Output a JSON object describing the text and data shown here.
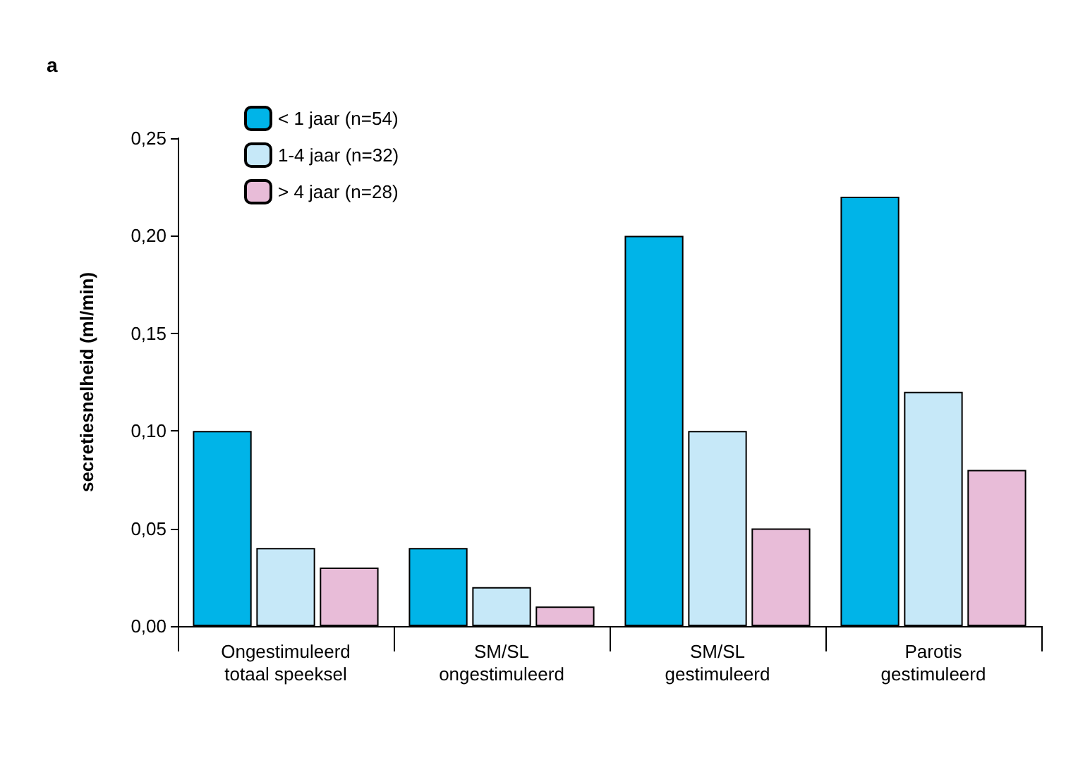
{
  "chart_data": {
    "type": "bar",
    "title": "a",
    "ylabel": "secretiesnelheid (ml/min)",
    "categories": [
      "Ongestimuleerd\ntotaal speeksel",
      "SM/SL\nongestimuleerd",
      "SM/SL\ngestimuleerd",
      "Parotis\ngestimuleerd"
    ],
    "series": [
      {
        "name": "< 1 jaar (n=54)",
        "color": "#00b4e8",
        "values": [
          0.1,
          0.04,
          0.2,
          0.22
        ]
      },
      {
        "name": "1-4 jaar (n=32)",
        "color": "#c6e8f8",
        "values": [
          0.04,
          0.02,
          0.1,
          0.12
        ]
      },
      {
        "name": "> 4 jaar (n=28)",
        "color": "#e8bcd8",
        "values": [
          0.03,
          0.01,
          0.05,
          0.08
        ]
      }
    ],
    "ylim": [
      0,
      0.25
    ],
    "yticks": [
      {
        "value": 0,
        "label": "0,00"
      },
      {
        "value": 0.05,
        "label": "0,05"
      },
      {
        "value": 0.1,
        "label": "0,10"
      },
      {
        "value": 0.15,
        "label": "0,15"
      },
      {
        "value": 0.2,
        "label": "0,20"
      },
      {
        "value": 0.25,
        "label": "0,25"
      }
    ],
    "grid": false,
    "legend": "top left"
  }
}
